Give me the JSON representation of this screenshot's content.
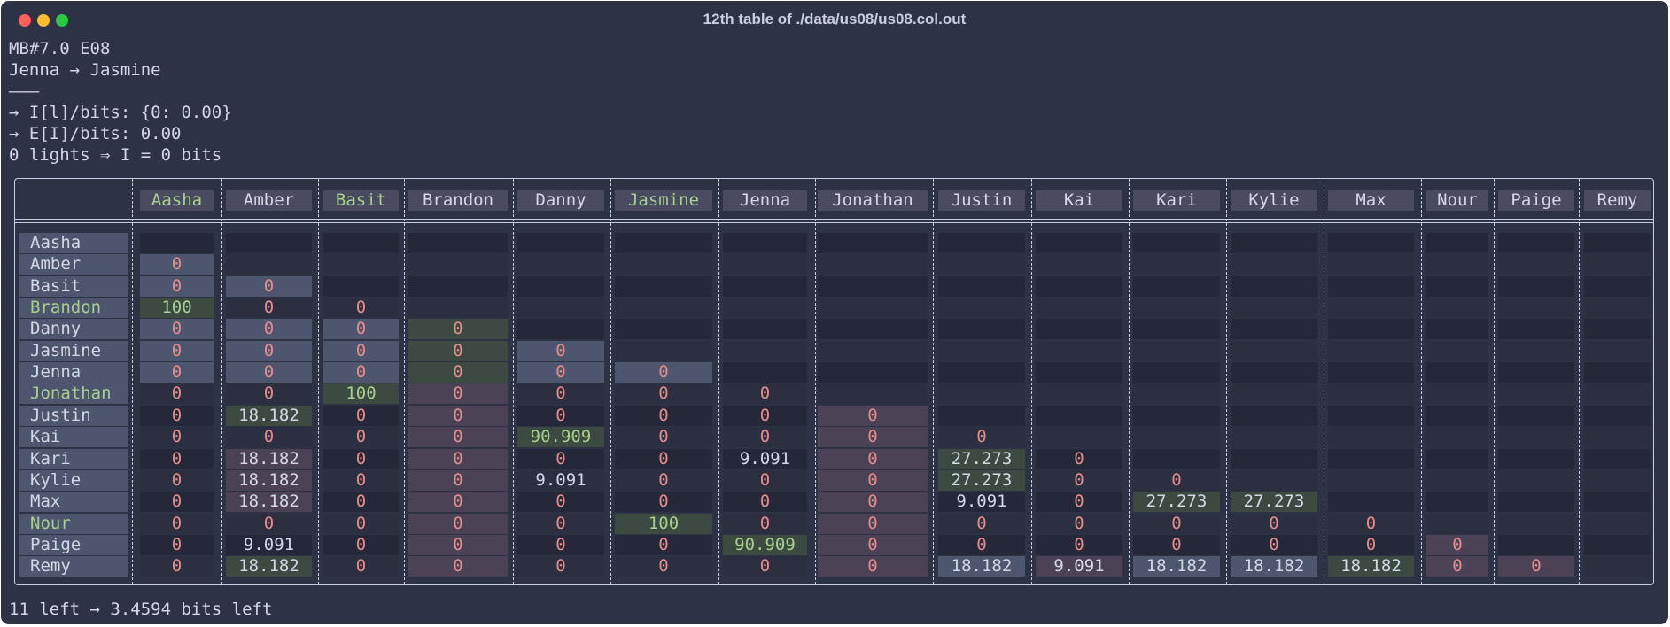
{
  "window": {
    "title": "12th table of ./data/us08/us08.col.out"
  },
  "header_lines": [
    "MB#7.0 E08",
    "Jenna → Jasmine",
    "———",
    "→ I[l]/bits: {0: 0.00}",
    "→ E[I]/bits: 0.00",
    "0 lights ⇒ I = 0 bits"
  ],
  "footer": "11 left → 3.4594 bits left",
  "table": {
    "columns": [
      "Aasha",
      "Amber",
      "Basit",
      "Brandon",
      "Danny",
      "Jasmine",
      "Jenna",
      "Jonathan",
      "Justin",
      "Kai",
      "Kari",
      "Kylie",
      "Max",
      "Nour",
      "Paige",
      "Remy"
    ],
    "highlighted_columns": [
      "Aasha",
      "Basit",
      "Jasmine"
    ],
    "rows": [
      {
        "name": "Aasha",
        "cells": [
          "",
          "",
          "",
          "",
          "",
          "",
          "",
          "",
          "",
          "",
          "",
          "",
          "",
          "",
          "",
          ""
        ]
      },
      {
        "name": "Amber",
        "cells": [
          "0",
          "",
          "",
          "",
          "",
          "",
          "",
          "",
          "",
          "",
          "",
          "",
          "",
          "",
          "",
          ""
        ]
      },
      {
        "name": "Basit",
        "cells": [
          "0",
          "0",
          "",
          "",
          "",
          "",
          "",
          "",
          "",
          "",
          "",
          "",
          "",
          "",
          "",
          ""
        ]
      },
      {
        "name": "Brandon",
        "highlight": true,
        "cells": [
          "100",
          "0",
          "0",
          "",
          "",
          "",
          "",
          "",
          "",
          "",
          "",
          "",
          "",
          "",
          "",
          ""
        ]
      },
      {
        "name": "Danny",
        "cells": [
          "0",
          "0",
          "0",
          "0",
          "",
          "",
          "",
          "",
          "",
          "",
          "",
          "",
          "",
          "",
          "",
          ""
        ]
      },
      {
        "name": "Jasmine",
        "cells": [
          "0",
          "0",
          "0",
          "0",
          "0",
          "",
          "",
          "",
          "",
          "",
          "",
          "",
          "",
          "",
          "",
          ""
        ]
      },
      {
        "name": "Jenna",
        "cells": [
          "0",
          "0",
          "0",
          "0",
          "0",
          "0",
          "",
          "",
          "",
          "",
          "",
          "",
          "",
          "",
          "",
          ""
        ]
      },
      {
        "name": "Jonathan",
        "highlight": true,
        "cells": [
          "0",
          "0",
          "100",
          "0",
          "0",
          "0",
          "0",
          "",
          "",
          "",
          "",
          "",
          "",
          "",
          "",
          ""
        ]
      },
      {
        "name": "Justin",
        "cells": [
          "0",
          "18.182",
          "0",
          "0",
          "0",
          "0",
          "0",
          "0",
          "",
          "",
          "",
          "",
          "",
          "",
          "",
          ""
        ]
      },
      {
        "name": "Kai",
        "cells": [
          "0",
          "0",
          "0",
          "0",
          "90.909",
          "0",
          "0",
          "0",
          "0",
          "",
          "",
          "",
          "",
          "",
          "",
          ""
        ]
      },
      {
        "name": "Kari",
        "cells": [
          "0",
          "18.182",
          "0",
          "0",
          "0",
          "0",
          "9.091",
          "0",
          "27.273",
          "0",
          "",
          "",
          "",
          "",
          "",
          ""
        ]
      },
      {
        "name": "Kylie",
        "cells": [
          "0",
          "18.182",
          "0",
          "0",
          "9.091",
          "0",
          "0",
          "0",
          "27.273",
          "0",
          "0",
          "",
          "",
          "",
          "",
          ""
        ]
      },
      {
        "name": "Max",
        "cells": [
          "0",
          "18.182",
          "0",
          "0",
          "0",
          "0",
          "0",
          "0",
          "9.091",
          "0",
          "27.273",
          "27.273",
          "",
          "",
          "",
          ""
        ]
      },
      {
        "name": "Nour",
        "highlight": true,
        "cells": [
          "0",
          "0",
          "0",
          "0",
          "0",
          "100",
          "0",
          "0",
          "0",
          "0",
          "0",
          "0",
          "0",
          "",
          "",
          ""
        ]
      },
      {
        "name": "Paige",
        "cells": [
          "0",
          "9.091",
          "0",
          "0",
          "0",
          "0",
          "90.909",
          "0",
          "0",
          "0",
          "0",
          "0",
          "0",
          "0",
          "",
          ""
        ]
      },
      {
        "name": "Remy",
        "cells": [
          "0",
          "18.182",
          "0",
          "0",
          "0",
          "0",
          "0",
          "0",
          "18.182",
          "9.091",
          "18.182",
          "18.182",
          "18.182",
          "0",
          "0",
          ""
        ]
      }
    ]
  },
  "colors": {
    "bg": "#2e3245",
    "text": "#d4d7e6",
    "zero": "#e58c8c",
    "green_text": "#a8d08e",
    "blue_fill": "#4e556e",
    "green_fill": "#3c4a42",
    "pink_fill": "#4b4255",
    "stripe": "#262938"
  }
}
